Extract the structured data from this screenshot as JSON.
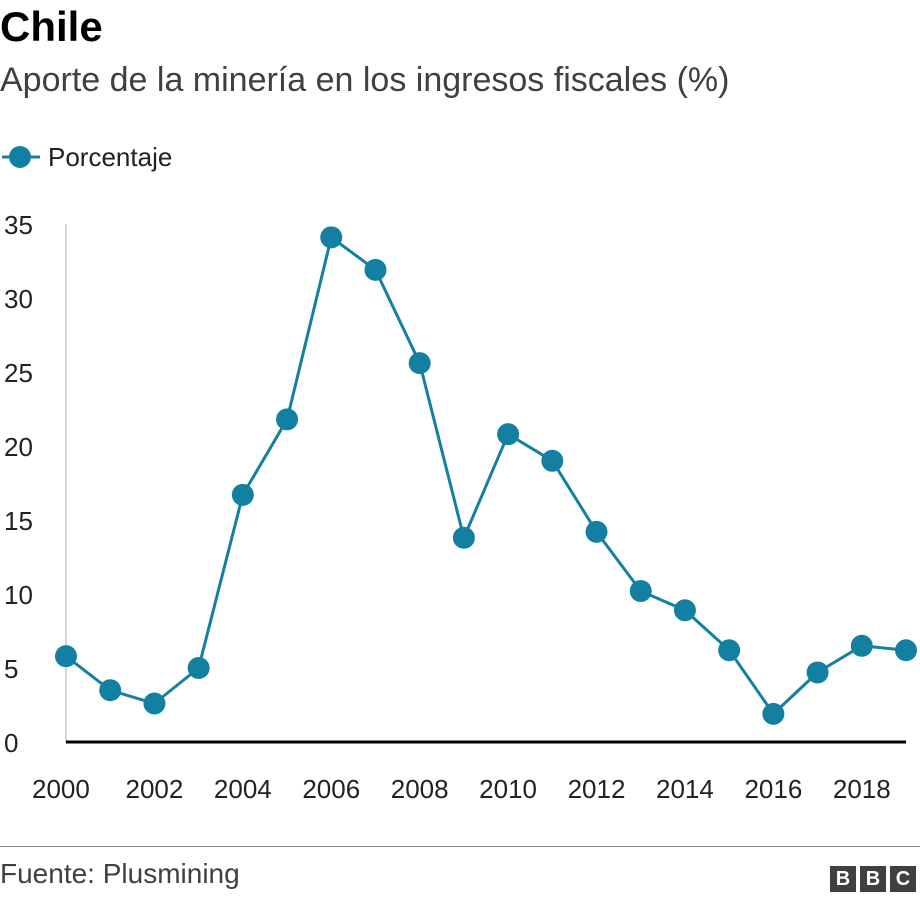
{
  "header": {
    "title": "Chile",
    "subtitle": "Aporte de la minería en los ingresos fiscales (%)"
  },
  "legend": {
    "label": "Porcentaje"
  },
  "colors": {
    "series": "#1380a1",
    "axis": "#000000",
    "text": "#222222"
  },
  "footer": {
    "source": "Fuente: Plusmining",
    "logo_letters": [
      "B",
      "B",
      "C"
    ]
  },
  "chart_data": {
    "type": "line",
    "title": "Chile",
    "subtitle": "Aporte de la minería en los ingresos fiscales (%)",
    "xlabel": "",
    "ylabel": "",
    "x": [
      2000,
      2001,
      2002,
      2003,
      2004,
      2005,
      2006,
      2007,
      2008,
      2009,
      2010,
      2011,
      2012,
      2013,
      2014,
      2015,
      2016,
      2017,
      2018,
      2019
    ],
    "series": [
      {
        "name": "Porcentaje",
        "values": [
          5.8,
          3.5,
          2.6,
          5.0,
          16.7,
          21.8,
          34.1,
          31.9,
          25.6,
          13.8,
          20.8,
          19.0,
          14.2,
          10.2,
          8.9,
          6.2,
          1.9,
          4.7,
          6.5,
          6.2
        ]
      }
    ],
    "xlim": [
      2000,
      2019
    ],
    "ylim": [
      0,
      35
    ],
    "yticks": [
      0,
      5,
      10,
      15,
      20,
      25,
      30,
      35
    ],
    "xticks": [
      2000,
      2002,
      2004,
      2006,
      2008,
      2010,
      2012,
      2014,
      2016,
      2018
    ],
    "grid": false,
    "legend_position": "top-left"
  }
}
